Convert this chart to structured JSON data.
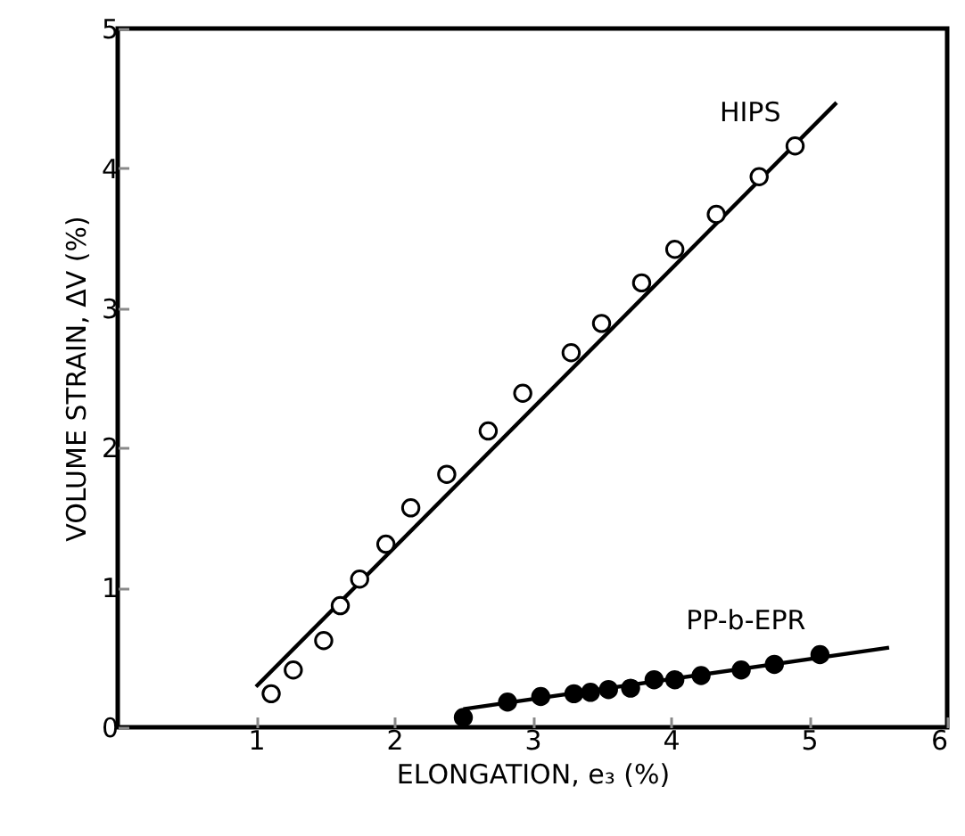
{
  "chart_data": {
    "type": "scatter",
    "xlabel": "ELONGATION, e₃ (%)",
    "ylabel": "VOLUME STRAIN, ΔV (%)",
    "xlim": [
      0,
      6
    ],
    "xticks": [
      1,
      2,
      3,
      4,
      5,
      6
    ],
    "ylim": [
      0,
      5
    ],
    "yticks": [
      0,
      1,
      2,
      3,
      4,
      5
    ],
    "grid": false,
    "series": [
      {
        "name": "HIPS",
        "type": "scatter",
        "marker": "circle",
        "color": "#ffffff",
        "x": [
          1.11,
          1.27,
          1.49,
          1.61,
          1.75,
          1.94,
          2.12,
          2.38,
          2.68,
          2.93,
          3.28,
          3.5,
          3.79,
          4.03,
          4.33,
          4.64,
          4.9
        ],
        "values": [
          0.24,
          0.41,
          0.62,
          0.87,
          1.06,
          1.31,
          1.57,
          1.81,
          2.12,
          2.39,
          2.68,
          2.89,
          3.18,
          3.42,
          3.67,
          3.94,
          4.16
        ]
      },
      {
        "name": "PP-b-EPR",
        "type": "scatter",
        "marker": "circle",
        "color": "#000000",
        "x": [
          2.5,
          2.82,
          3.06,
          3.3,
          3.42,
          3.55,
          3.71,
          3.88,
          4.03,
          4.22,
          4.51,
          4.75,
          5.08
        ],
        "values": [
          0.07,
          0.18,
          0.22,
          0.24,
          0.25,
          0.27,
          0.28,
          0.34,
          0.34,
          0.37,
          0.41,
          0.45,
          0.52
        ]
      },
      {
        "type": "line",
        "color": "#000000",
        "x": [
          1.0,
          5.2
        ],
        "values": [
          0.29,
          4.47
        ]
      },
      {
        "type": "line",
        "color": "#000000",
        "x": [
          2.5,
          5.58
        ],
        "values": [
          0.13,
          0.57
        ]
      }
    ]
  }
}
